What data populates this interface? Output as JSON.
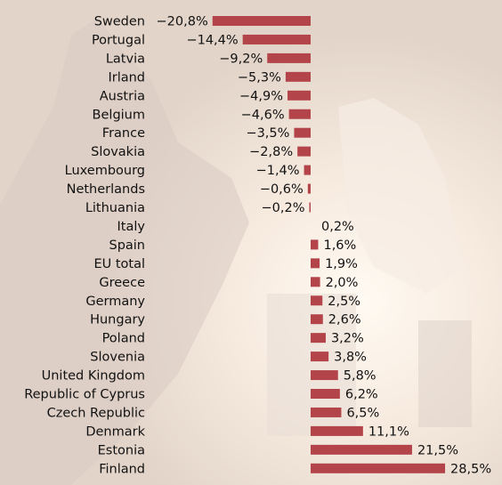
{
  "chart_data": {
    "type": "bar",
    "orientation": "horizontal",
    "title": "",
    "xlabel": "",
    "ylabel": "",
    "bar_color": "#b3454a",
    "categories": [
      "Sweden",
      "Portugal",
      "Latvia",
      "Irland",
      "Austria",
      "Belgium",
      "France",
      "Slovakia",
      "Luxembourg",
      "Netherlands",
      "Lithuania",
      "Italy",
      "Spain",
      "EU total",
      "Greece",
      "Germany",
      "Hungary",
      "Poland",
      "Slovenia",
      "United Kingdom",
      "Republic of Cyprus",
      "Czech Republic",
      "Denmark",
      "Estonia",
      "Finland"
    ],
    "values": [
      -20.8,
      -14.4,
      -9.2,
      -5.3,
      -4.9,
      -4.6,
      -3.5,
      -2.8,
      -1.4,
      -0.6,
      -0.2,
      0.2,
      1.6,
      1.9,
      2.0,
      2.5,
      2.6,
      3.2,
      3.8,
      5.8,
      6.2,
      6.5,
      11.1,
      21.5,
      28.5
    ],
    "value_labels": [
      "−20,8%",
      "−14,4%",
      "−9,2%",
      "−5,3%",
      "−4,9%",
      "−4,6%",
      "−3,5%",
      "−2,8%",
      "−1,4%",
      "−0,6%",
      "−0,2%",
      "0,2%",
      "1,6%",
      "1,9%",
      "2,0%",
      "2,5%",
      "2,6%",
      "3,2%",
      "3,8%",
      "5,8%",
      "6,2%",
      "6,5%",
      "11,1%",
      "21,5%",
      "28,5%"
    ]
  }
}
